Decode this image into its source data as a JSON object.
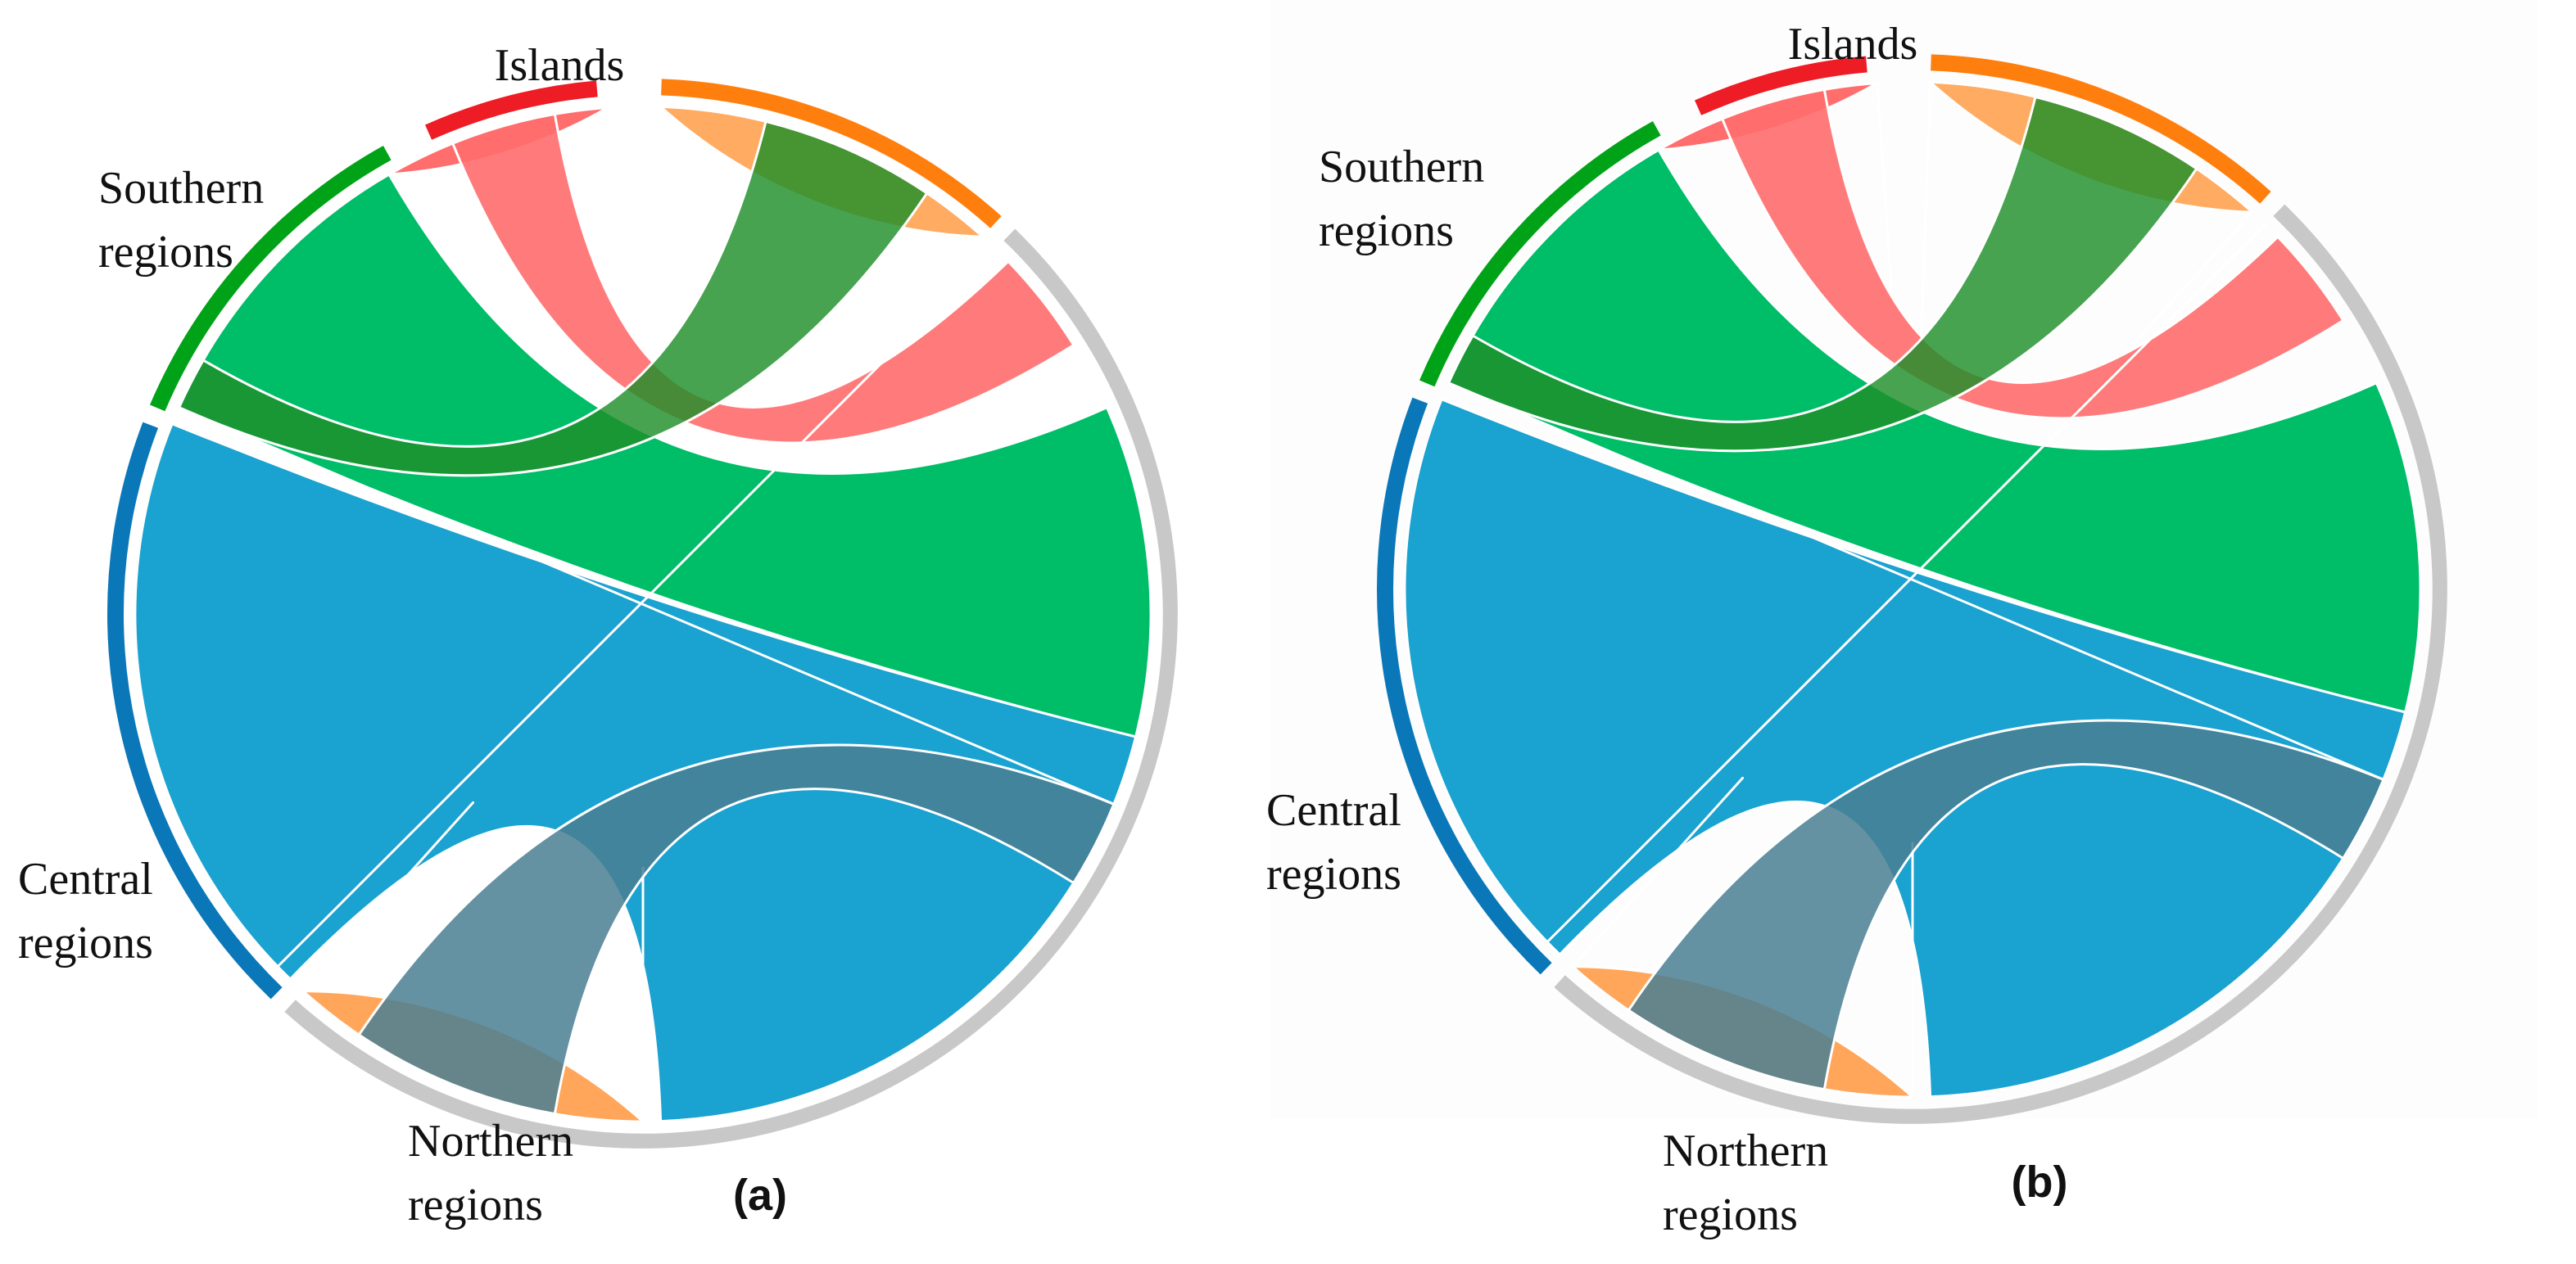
{
  "panels": [
    {
      "id": "a",
      "label": "(a)",
      "groups": [
        {
          "name": "Islands",
          "label_lines": [
            "Islands"
          ],
          "color": "#ee1c25"
        },
        {
          "name": "Southern regions",
          "label_lines": [
            "Southern",
            "regions"
          ],
          "color": "#00a317"
        },
        {
          "name": "Central regions",
          "label_lines": [
            "Central",
            "regions"
          ],
          "color": "#0a78b8"
        },
        {
          "name": "Northern regions",
          "label_lines": [
            "Northern",
            "regions"
          ],
          "color": "#c8c8c8"
        },
        {
          "name": "",
          "label_lines": [],
          "color": "#ff7f0e"
        }
      ]
    },
    {
      "id": "b",
      "label": "(b)",
      "groups": [
        {
          "name": "Islands",
          "label_lines": [
            "Islands"
          ],
          "color": "#ee1c25"
        },
        {
          "name": "Southern regions",
          "label_lines": [
            "Southern",
            "regions"
          ],
          "color": "#00a317"
        },
        {
          "name": "Central regions",
          "label_lines": [
            "Central",
            "regions"
          ],
          "color": "#0a78b8"
        },
        {
          "name": "Northern regions",
          "label_lines": [
            "Northern",
            "regions"
          ],
          "color": "#c8c8c8"
        },
        {
          "name": "",
          "label_lines": [],
          "color": "#ff7f0e"
        }
      ]
    }
  ],
  "chord_colors": {
    "orange": "#ffa65a",
    "green": "#00bd68",
    "blue": "#1aa2d0",
    "red": "#ff6d6d"
  }
}
